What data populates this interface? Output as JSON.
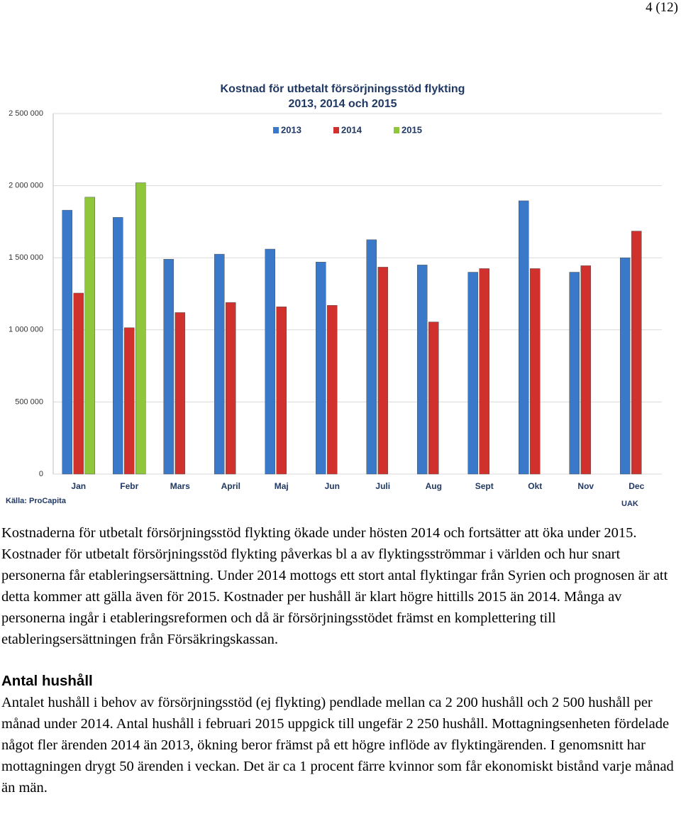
{
  "page_number": "4 (12)",
  "chart_data": {
    "type": "bar",
    "title": "Kostnad för utbetalt försörjningsstöd flykting",
    "subtitle": "2013, 2014 och 2015",
    "categories": [
      "Jan",
      "Febr",
      "Mars",
      "April",
      "Maj",
      "Jun",
      "Juli",
      "Aug",
      "Sept",
      "Okt",
      "Nov",
      "Dec"
    ],
    "series": [
      {
        "name": "2013",
        "color": "#3a78c9",
        "values": [
          1830000,
          1780000,
          1490000,
          1525000,
          1560000,
          1470000,
          1625000,
          1450000,
          1400000,
          1895000,
          1400000,
          1500000
        ]
      },
      {
        "name": "2014",
        "color": "#d0312d",
        "values": [
          1255000,
          1015000,
          1120000,
          1190000,
          1160000,
          1170000,
          1435000,
          1055000,
          1425000,
          1425000,
          1445000,
          1685000
        ]
      },
      {
        "name": "2015",
        "color": "#8fc63c",
        "values": [
          1920000,
          2020000,
          null,
          null,
          null,
          null,
          null,
          null,
          null,
          null,
          null,
          null
        ]
      }
    ],
    "ylim": [
      0,
      2500000
    ],
    "yticks": [
      0,
      {
        "value": 500000,
        "label": "500 000"
      },
      {
        "value": 1000000,
        "label": "1 000 000"
      },
      {
        "value": 1500000,
        "label": "1 500 000"
      },
      {
        "value": 2000000,
        "label": "2 000 000"
      },
      {
        "value": 2500000,
        "label": "2 500 000"
      }
    ],
    "grid": true,
    "legend": "top",
    "source": "Källa: ProCapita",
    "note": "UAK"
  },
  "paragraphs": [
    "Kostnaderna för utbetalt försörjningsstöd flykting ökade under hösten 2014 och fortsätter att öka under 2015. Kostnader för utbetalt försörjningsstöd flykting påverkas bl a av flyktingsströmmar i världen och hur snart personerna får etableringsersättning. Under 2014 mottogs ett stort antal flyktingar från Syrien och prognosen är att detta kommer att gälla även för 2015. Kostnader per hushåll är klart högre hittills 2015 än 2014. Många av personerna ingår i etableringsreformen och då är försörjningsstödet främst en komplettering till etableringsersättningen från Försäkringskassan."
  ],
  "section": {
    "heading": "Antal hushåll",
    "text": "Antalet hushåll i behov av försörjningsstöd (ej flykting) pendlade mellan ca 2 200 hushåll och 2 500 hushåll per månad under 2014. Antal hushåll i februari 2015 uppgick till ungefär 2 250 hushåll. Mottagningsenheten fördelade något fler ärenden 2014 än 2013, ökning beror främst på ett högre inflöde av flyktingärenden. I genomsnitt har mottagningen drygt 50 ärenden i veckan. Det är ca 1 procent färre kvinnor som får ekonomiskt bistånd varje månad än män."
  }
}
